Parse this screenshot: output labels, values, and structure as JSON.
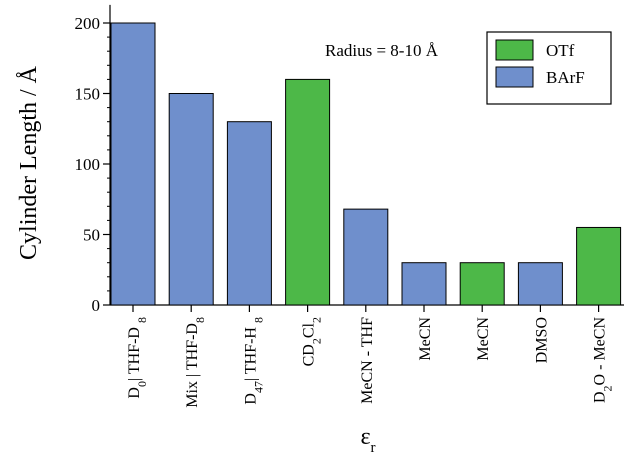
{
  "chart_data": {
    "type": "bar",
    "ylabel": "Cylinder Length / Å",
    "xlabel": {
      "main": "ε",
      "sub": "r"
    },
    "annotation": "Radius = 8-10 Å",
    "ylim": [
      0,
      210
    ],
    "yticks": [
      0,
      50,
      100,
      150,
      200
    ],
    "grid": false,
    "legend": {
      "placement": "top-right",
      "items": [
        {
          "label": "OTf",
          "color": "#4db848"
        },
        {
          "label": "BArF",
          "color": "#6f8fcc"
        }
      ]
    },
    "categories": [
      {
        "parts": [
          {
            "t": "D"
          },
          {
            "t": "0",
            "sub": true
          },
          {
            "t": "| THF-D "
          },
          {
            "t": "8",
            "sub": true
          }
        ]
      },
      {
        "parts": [
          {
            "t": "Mix | THF-D"
          },
          {
            "t": "8",
            "sub": true
          }
        ]
      },
      {
        "parts": [
          {
            "t": "D"
          },
          {
            "t": "47",
            "sub": true
          },
          {
            "t": "| THF-H "
          },
          {
            "t": "8",
            "sub": true
          }
        ]
      },
      {
        "parts": [
          {
            "t": "CD"
          },
          {
            "t": "2",
            "sub": true
          },
          {
            "t": "Cl"
          },
          {
            "t": "2",
            "sub": true
          }
        ]
      },
      {
        "parts": [
          {
            "t": "MeCN - THF"
          }
        ]
      },
      {
        "parts": [
          {
            "t": "MeCN"
          }
        ]
      },
      {
        "parts": [
          {
            "t": "MeCN"
          }
        ]
      },
      {
        "parts": [
          {
            "t": "DMSO"
          }
        ]
      },
      {
        "parts": [
          {
            "t": "D"
          },
          {
            "t": "2",
            "sub": true
          },
          {
            "t": "O - MeCN"
          }
        ]
      }
    ],
    "values": [
      200,
      150,
      130,
      160,
      68,
      30,
      30,
      30,
      55
    ],
    "series_of_bar": [
      "BArF",
      "BArF",
      "BArF",
      "OTf",
      "BArF",
      "BArF",
      "OTf",
      "BArF",
      "OTf"
    ]
  }
}
